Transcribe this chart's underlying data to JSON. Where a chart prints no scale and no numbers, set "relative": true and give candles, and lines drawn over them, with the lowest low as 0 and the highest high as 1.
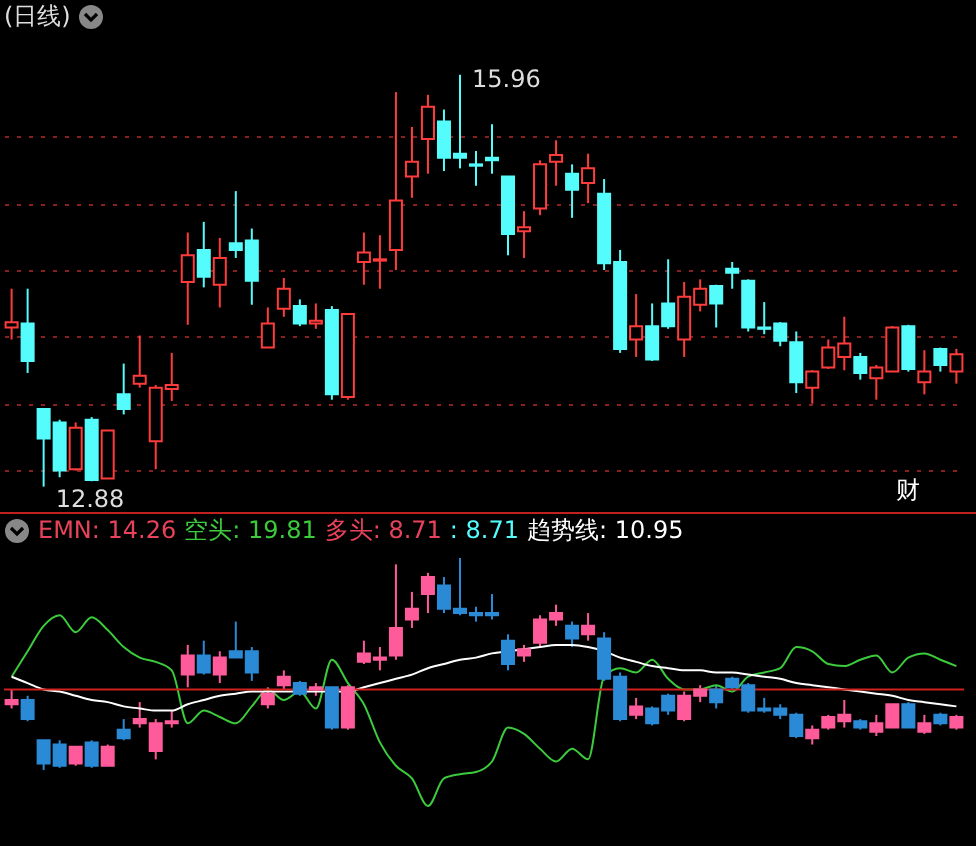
{
  "chart_data": [
    {
      "type": "candlestick",
      "title": "(日线)",
      "categories": [
        null,
        null,
        null,
        null,
        null,
        null,
        null,
        null,
        null,
        null,
        null,
        null,
        null,
        null,
        null,
        null,
        null,
        null,
        null,
        null,
        null,
        null,
        null,
        null,
        null,
        null,
        null,
        null,
        null,
        null,
        null,
        null,
        null,
        null,
        null,
        null,
        null,
        null,
        null,
        null,
        null,
        null,
        null,
        null,
        null,
        null,
        null,
        null,
        null,
        null,
        null,
        null,
        null,
        null,
        null,
        null,
        null,
        null,
        null,
        null
      ],
      "ohlc": [
        [
          14.07,
          14.36,
          13.98,
          14.11
        ],
        [
          14.1,
          14.36,
          13.73,
          13.82
        ],
        [
          13.46,
          13.46,
          12.88,
          13.24
        ],
        [
          13.36,
          13.38,
          12.95,
          13.0
        ],
        [
          13.01,
          13.36,
          13.0,
          13.32
        ],
        [
          13.38,
          13.4,
          12.92,
          12.93
        ],
        [
          12.94,
          13.3,
          12.94,
          13.3
        ],
        [
          13.57,
          13.8,
          13.42,
          13.46
        ],
        [
          13.65,
          14.01,
          13.62,
          13.71
        ],
        [
          13.22,
          13.64,
          13.01,
          13.62
        ],
        [
          13.61,
          13.88,
          13.52,
          13.64
        ],
        [
          14.41,
          14.78,
          14.09,
          14.61
        ],
        [
          14.65,
          14.86,
          14.37,
          14.45
        ],
        [
          14.39,
          14.74,
          14.22,
          14.59
        ],
        [
          14.7,
          15.09,
          14.59,
          14.65
        ],
        [
          14.72,
          14.81,
          14.24,
          14.42
        ],
        [
          13.92,
          14.22,
          13.92,
          14.1
        ],
        [
          14.21,
          14.44,
          14.15,
          14.36
        ],
        [
          14.23,
          14.28,
          14.08,
          14.1
        ],
        [
          14.1,
          14.25,
          14.06,
          14.12
        ],
        [
          14.2,
          14.23,
          13.53,
          13.57
        ],
        [
          13.55,
          14.17,
          13.53,
          14.17
        ],
        [
          14.56,
          14.78,
          14.39,
          14.63
        ],
        [
          14.57,
          14.76,
          14.36,
          14.58
        ],
        [
          14.65,
          15.83,
          14.5,
          15.02
        ],
        [
          15.2,
          15.57,
          15.04,
          15.31
        ],
        [
          15.48,
          15.81,
          15.22,
          15.72
        ],
        [
          15.61,
          15.7,
          15.24,
          15.34
        ],
        [
          15.37,
          15.96,
          15.26,
          15.34
        ],
        [
          15.29,
          15.39,
          15.13,
          15.28
        ],
        [
          15.34,
          15.59,
          15.22,
          15.32
        ],
        [
          15.2,
          15.2,
          14.61,
          14.77
        ],
        [
          14.79,
          14.94,
          14.59,
          14.82
        ],
        [
          14.96,
          15.32,
          14.91,
          15.29
        ],
        [
          15.31,
          15.47,
          15.13,
          15.36
        ],
        [
          15.22,
          15.29,
          14.89,
          15.1
        ],
        [
          15.15,
          15.37,
          15.0,
          15.26
        ],
        [
          15.07,
          15.18,
          14.5,
          14.55
        ],
        [
          14.56,
          14.65,
          13.88,
          13.91
        ],
        [
          13.98,
          14.32,
          13.85,
          14.08
        ],
        [
          14.08,
          14.25,
          13.82,
          13.83
        ],
        [
          14.25,
          14.58,
          14.06,
          14.08
        ],
        [
          13.98,
          14.41,
          13.85,
          14.3
        ],
        [
          14.24,
          14.43,
          14.19,
          14.36
        ],
        [
          14.38,
          14.39,
          14.07,
          14.25
        ],
        [
          14.51,
          14.56,
          14.36,
          14.48
        ],
        [
          14.42,
          14.43,
          14.04,
          14.07
        ],
        [
          14.07,
          14.26,
          14.02,
          14.06
        ],
        [
          14.1,
          14.11,
          13.93,
          13.97
        ],
        [
          13.96,
          14.04,
          13.58,
          13.66
        ],
        [
          13.62,
          13.75,
          13.5,
          13.74
        ],
        [
          13.77,
          13.98,
          13.76,
          13.92
        ],
        [
          13.85,
          14.15,
          13.75,
          13.95
        ],
        [
          13.85,
          13.88,
          13.68,
          13.73
        ],
        [
          13.69,
          13.79,
          13.53,
          13.77
        ],
        [
          13.74,
          14.08,
          13.74,
          14.07
        ],
        [
          14.08,
          14.09,
          13.74,
          13.76
        ],
        [
          13.66,
          13.9,
          13.57,
          13.74
        ],
        [
          13.91,
          13.92,
          13.74,
          13.79
        ],
        [
          13.74,
          13.91,
          13.65,
          13.87
        ]
      ],
      "colors": [
        "#ff3c3c",
        "#54fcfc",
        "#54fcfc",
        "#54fcfc",
        "#ff3c3c",
        "#54fcfc",
        "#ff3c3c",
        "#54fcfc",
        "#ff3c3c",
        "#ff3c3c",
        "#ff3c3c",
        "#ff3c3c",
        "#54fcfc",
        "#ff3c3c",
        "#54fcfc",
        "#54fcfc",
        "#ff3c3c",
        "#ff3c3c",
        "#54fcfc",
        "#ff3c3c",
        "#54fcfc",
        "#ff3c3c",
        "#ff3c3c",
        "#ff3c3c",
        "#ff3c3c",
        "#ff3c3c",
        "#ff3c3c",
        "#54fcfc",
        "#54fcfc",
        "#54fcfc",
        "#54fcfc",
        "#54fcfc",
        "#ff3c3c",
        "#ff3c3c",
        "#ff3c3c",
        "#54fcfc",
        "#ff3c3c",
        "#54fcfc",
        "#54fcfc",
        "#ff3c3c",
        "#54fcfc",
        "#54fcfc",
        "#ff3c3c",
        "#ff3c3c",
        "#54fcfc",
        "#54fcfc",
        "#54fcfc",
        "#54fcfc",
        "#54fcfc",
        "#54fcfc",
        "#ff3c3c",
        "#ff3c3c",
        "#ff3c3c",
        "#54fcfc",
        "#ff3c3c",
        "#ff3c3c",
        "#54fcfc",
        "#ff3c3c",
        "#54fcfc",
        "#ff3c3c"
      ],
      "ylim": [
        12.72,
        16.25
      ],
      "yticks": [
        {
          "value": 13,
          "label": null
        },
        {
          "value": 13.5,
          "label": null
        },
        {
          "value": 14,
          "label": null
        },
        {
          "value": 14.5,
          "label": null
        },
        {
          "value": 15,
          "label": null
        },
        {
          "value": 15.5,
          "label": null
        }
      ],
      "grid": "y",
      "annotations": [
        "15.96",
        "12.88",
        "财"
      ]
    },
    {
      "type": "candlestick",
      "relative": true,
      "categories": [
        null,
        null,
        null,
        null,
        null,
        null,
        null,
        null,
        null,
        null,
        null,
        null,
        null,
        null,
        null,
        null,
        null,
        null,
        null,
        null,
        null,
        null,
        null,
        null,
        null,
        null,
        null,
        null,
        null,
        null,
        null,
        null,
        null,
        null,
        null,
        null,
        null,
        null,
        null,
        null,
        null,
        null,
        null,
        null,
        null,
        null,
        null,
        null,
        null,
        null,
        null,
        null,
        null,
        null,
        null,
        null,
        null,
        null,
        null,
        null
      ],
      "ohlc": [
        [
          0.31,
          0.38,
          0.29,
          0.33
        ],
        [
          0.33,
          0.35,
          0.23,
          0.24
        ],
        [
          0.14,
          0.14,
          0,
          0.03
        ],
        [
          0.12,
          0.14,
          0.01,
          0.02
        ],
        [
          0.03,
          0.11,
          0.02,
          0.11
        ],
        [
          0.13,
          0.14,
          0.01,
          0.02
        ],
        [
          0.02,
          0.12,
          0.02,
          0.11
        ],
        [
          0.19,
          0.24,
          0.14,
          0.15
        ],
        [
          0.22,
          0.32,
          0.2,
          0.24
        ],
        [
          0.09,
          0.24,
          0.05,
          0.22
        ],
        [
          0.22,
          0.28,
          0.2,
          0.23
        ],
        [
          0.45,
          0.59,
          0.39,
          0.54
        ],
        [
          0.54,
          0.61,
          0.45,
          0.46
        ],
        [
          0.45,
          0.56,
          0.41,
          0.53
        ],
        [
          0.56,
          0.7,
          0.53,
          0.53
        ],
        [
          0.56,
          0.58,
          0.42,
          0.46
        ],
        [
          0.31,
          0.39,
          0.29,
          0.36
        ],
        [
          0.4,
          0.47,
          0.38,
          0.44
        ],
        [
          0.41,
          0.42,
          0.35,
          0.36
        ],
        [
          0.38,
          0.41,
          0.35,
          0.39
        ],
        [
          0.39,
          0.39,
          0.19,
          0.2
        ],
        [
          0.2,
          0.4,
          0.19,
          0.39
        ],
        [
          0.51,
          0.61,
          0.5,
          0.55
        ],
        [
          0.52,
          0.58,
          0.47,
          0.53
        ],
        [
          0.54,
          0.97,
          0.52,
          0.67
        ],
        [
          0.71,
          0.84,
          0.67,
          0.76
        ],
        [
          0.83,
          0.93,
          0.74,
          0.91
        ],
        [
          0.87,
          0.91,
          0.74,
          0.76
        ],
        [
          0.76,
          1,
          0.73,
          0.74
        ],
        [
          0.74,
          0.77,
          0.7,
          0.73
        ],
        [
          0.74,
          0.83,
          0.71,
          0.73
        ],
        [
          0.61,
          0.64,
          0.47,
          0.5
        ],
        [
          0.54,
          0.59,
          0.51,
          0.57
        ],
        [
          0.6,
          0.73,
          0.58,
          0.71
        ],
        [
          0.71,
          0.78,
          0.68,
          0.74
        ],
        [
          0.68,
          0.7,
          0.58,
          0.62
        ],
        [
          0.64,
          0.74,
          0.61,
          0.68
        ],
        [
          0.62,
          0.65,
          0.42,
          0.43
        ],
        [
          0.44,
          0.46,
          0.23,
          0.24
        ],
        [
          0.26,
          0.34,
          0.24,
          0.3
        ],
        [
          0.29,
          0.3,
          0.21,
          0.22
        ],
        [
          0.35,
          0.36,
          0.26,
          0.28
        ],
        [
          0.24,
          0.37,
          0.23,
          0.35
        ],
        [
          0.35,
          0.4,
          0.32,
          0.38
        ],
        [
          0.38,
          0.4,
          0.29,
          0.32
        ],
        [
          0.43,
          0.44,
          0.38,
          0.39
        ],
        [
          0.4,
          0.41,
          0.27,
          0.28
        ],
        [
          0.29,
          0.34,
          0.27,
          0.28
        ],
        [
          0.29,
          0.31,
          0.24,
          0.26
        ],
        [
          0.26,
          0.27,
          0.15,
          0.16
        ],
        [
          0.15,
          0.21,
          0.12,
          0.19
        ],
        [
          0.2,
          0.26,
          0.19,
          0.25
        ],
        [
          0.23,
          0.33,
          0.2,
          0.26
        ],
        [
          0.23,
          0.24,
          0.19,
          0.2
        ],
        [
          0.18,
          0.26,
          0.16,
          0.22
        ],
        [
          0.2,
          0.31,
          0.2,
          0.31
        ],
        [
          0.31,
          0.32,
          0.2,
          0.2
        ],
        [
          0.18,
          0.26,
          0.17,
          0.22
        ],
        [
          0.26,
          0.27,
          0.21,
          0.22
        ],
        [
          0.2,
          0.26,
          0.19,
          0.25
        ]
      ],
      "colors": [
        "#ff5b9b",
        "#2a8ad6",
        "#2a8ad6",
        "#2a8ad6",
        "#ff5b9b",
        "#2a8ad6",
        "#ff5b9b",
        "#2a8ad6",
        "#ff5b9b",
        "#ff5b9b",
        "#ff5b9b",
        "#ff5b9b",
        "#2a8ad6",
        "#ff5b9b",
        "#2a8ad6",
        "#2a8ad6",
        "#ff5b9b",
        "#ff5b9b",
        "#2a8ad6",
        "#ff5b9b",
        "#2a8ad6",
        "#ff5b9b",
        "#ff5b9b",
        "#ff5b9b",
        "#ff5b9b",
        "#ff5b9b",
        "#ff5b9b",
        "#2a8ad6",
        "#2a8ad6",
        "#2a8ad6",
        "#2a8ad6",
        "#2a8ad6",
        "#ff5b9b",
        "#ff5b9b",
        "#ff5b9b",
        "#2a8ad6",
        "#ff5b9b",
        "#2a8ad6",
        "#2a8ad6",
        "#ff5b9b",
        "#2a8ad6",
        "#2a8ad6",
        "#ff5b9b",
        "#ff5b9b",
        "#2a8ad6",
        "#2a8ad6",
        "#2a8ad6",
        "#2a8ad6",
        "#2a8ad6",
        "#2a8ad6",
        "#ff5b9b",
        "#ff5b9b",
        "#ff5b9b",
        "#2a8ad6",
        "#ff5b9b",
        "#ff5b9b",
        "#2a8ad6",
        "#ff5b9b",
        "#2a8ad6",
        "#ff5b9b"
      ],
      "series": [
        {
          "type": "line",
          "color": "#3ccb3c",
          "values": [
            0.44,
            0.56,
            0.68,
            0.73,
            0.65,
            0.72,
            0.66,
            0.58,
            0.53,
            0.51,
            0.47,
            0.22,
            0.28,
            0.25,
            0.22,
            0.3,
            0.38,
            0.33,
            0.37,
            0.29,
            0.52,
            0.41,
            0.31,
            0.13,
            0.02,
            -0.04,
            -0.17,
            -0.04,
            -0.02,
            -0.01,
            0.04,
            0.2,
            0.17,
            0.1,
            0.04,
            0.1,
            0.05,
            0.44,
            0.48,
            0.46,
            0.52,
            0.43,
            0.38,
            0.38,
            0.4,
            0.37,
            0.44,
            0.46,
            0.48,
            0.58,
            0.56,
            0.5,
            0.49,
            0.52,
            0.54,
            0.46,
            0.53,
            0.55,
            0.52,
            0.49
          ]
        },
        {
          "type": "line",
          "color": "#ffffff",
          "values": [
            0.44,
            0.41,
            0.38,
            0.37,
            0.35,
            0.33,
            0.32,
            0.3,
            0.29,
            0.28,
            0.28,
            0.31,
            0.33,
            0.35,
            0.36,
            0.37,
            0.37,
            0.37,
            0.37,
            0.37,
            0.37,
            0.37,
            0.39,
            0.41,
            0.43,
            0.45,
            0.48,
            0.5,
            0.52,
            0.53,
            0.55,
            0.56,
            0.57,
            0.58,
            0.59,
            0.59,
            0.58,
            0.56,
            0.53,
            0.51,
            0.49,
            0.48,
            0.47,
            0.47,
            0.46,
            0.46,
            0.45,
            0.44,
            0.43,
            0.41,
            0.4,
            0.39,
            0.38,
            0.37,
            0.36,
            0.35,
            0.33,
            0.32,
            0.31,
            0.3
          ]
        }
      ],
      "ref_lines": [
        {
          "axis": "y",
          "value": 0.38,
          "color": "#d02020"
        }
      ],
      "annotations": [
        "EMN: 14.26",
        "空头: 19.81",
        "多头: 8.71",
        ": 8.71",
        "趋势线: 10.95"
      ]
    }
  ]
}
